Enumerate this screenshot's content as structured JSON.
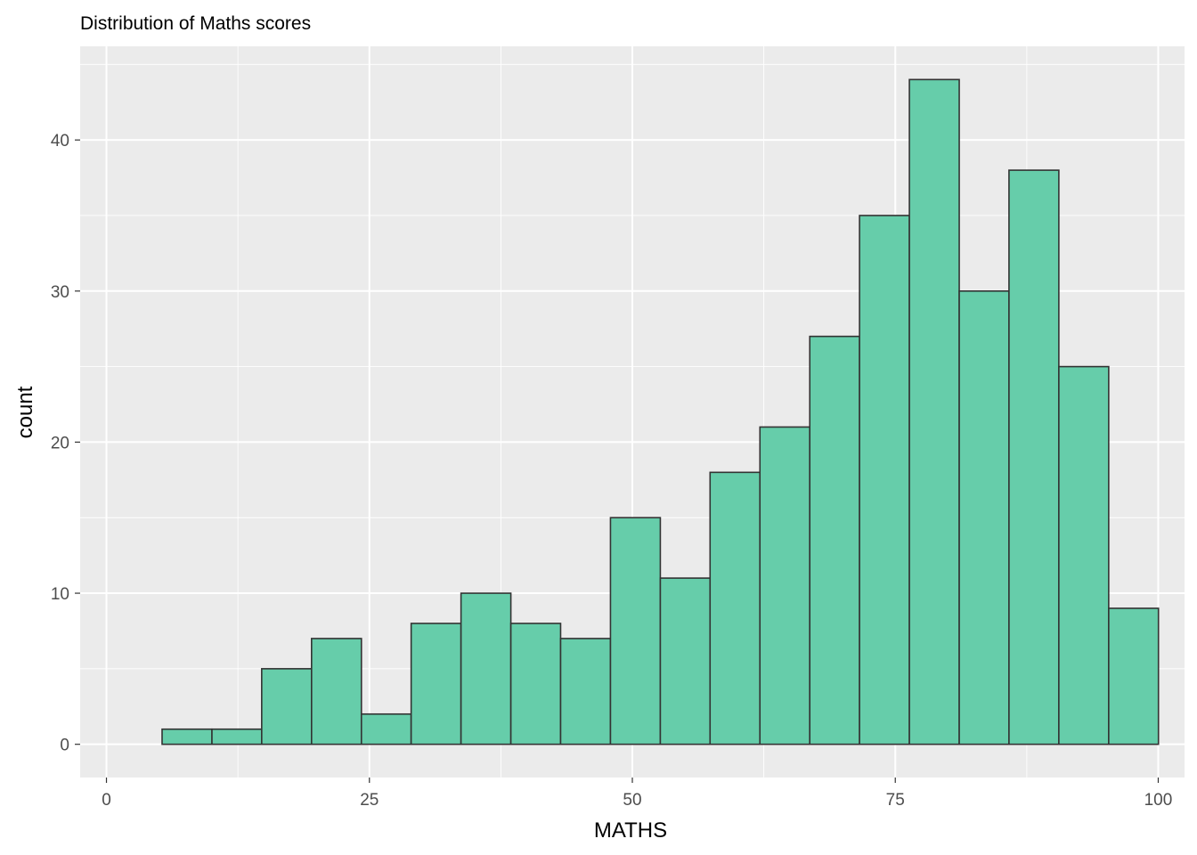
{
  "chart_data": {
    "type": "bar",
    "title": "Distribution of Maths scores",
    "xlabel": "MATHS",
    "ylabel": "count",
    "xlim": [
      -2.5,
      102.5
    ],
    "ylim": [
      -2.2,
      46.2
    ],
    "x_ticks": [
      0,
      25,
      50,
      75,
      100
    ],
    "y_ticks": [
      0,
      10,
      20,
      30,
      40
    ],
    "bin_edges": [
      5.29,
      10.03,
      14.76,
      19.5,
      24.24,
      28.97,
      33.71,
      38.45,
      43.18,
      47.92,
      52.66,
      57.39,
      62.13,
      66.87,
      71.6,
      76.34,
      81.08,
      85.81,
      90.55,
      95.29,
      100.02
    ],
    "counts": [
      1,
      1,
      5,
      7,
      2,
      8,
      10,
      8,
      7,
      15,
      11,
      18,
      21,
      27,
      35,
      44,
      30,
      38,
      25,
      9
    ],
    "grid": true,
    "legend": "none"
  },
  "colors": {
    "panel_background": "#ebebeb",
    "grid": "#ffffff",
    "bar_fill": "#66cdaa",
    "bar_outline": "#333333",
    "tick_text": "#4d4d4d",
    "tick_marks": "#333333"
  }
}
